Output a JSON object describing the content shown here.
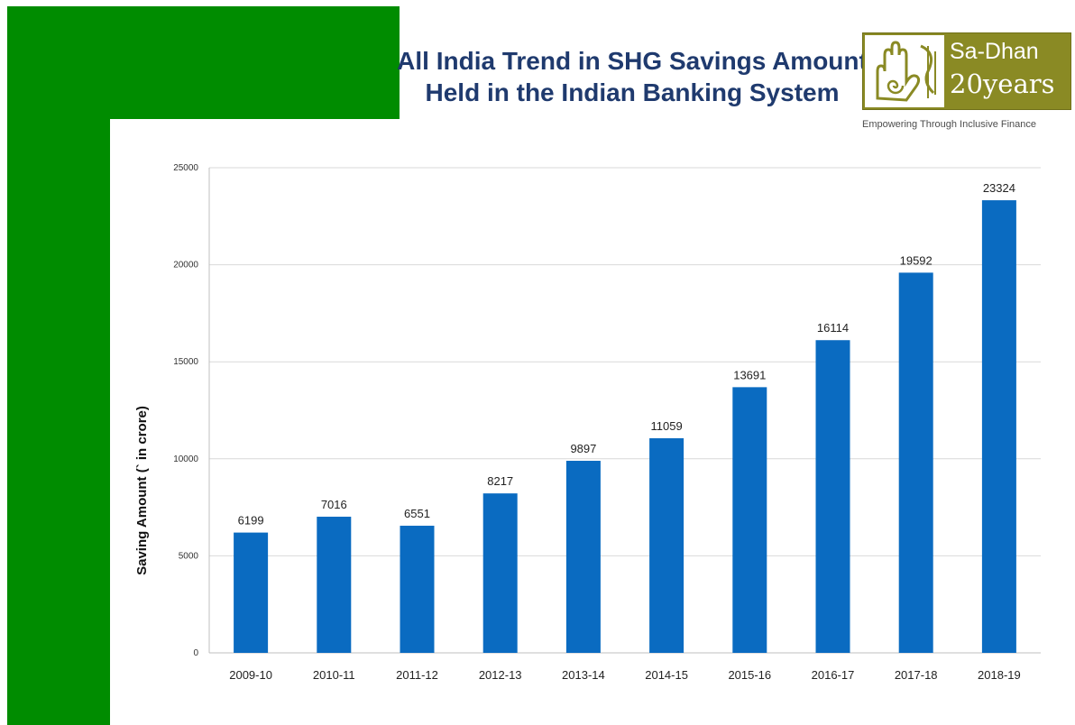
{
  "slide": {
    "title": "All India Trend in SHG Savings Amount Held in the Indian Banking System"
  },
  "logo": {
    "name": "Sa-Dhan",
    "years": "20years",
    "tagline": "Empowering Through Inclusive Finance",
    "color": "#8a8a24",
    "emblem": "hand-spiral-icon"
  },
  "colors": {
    "accent_green": "#008c00",
    "bar": "#0a6bc1",
    "title": "#1f3a6e"
  },
  "chart_data": {
    "type": "bar",
    "title": "",
    "xlabel": "",
    "ylabel": "Saving Amount (` in crore)",
    "categories": [
      "2009-10",
      "2010-11",
      "2011-12",
      "2012-13",
      "2013-14",
      "2014-15",
      "2015-16",
      "2016-17",
      "2017-18",
      "2018-19"
    ],
    "values": [
      6199,
      7016,
      6551,
      8217,
      9897,
      11059,
      13691,
      16114,
      19592,
      23324
    ],
    "data_labels": [
      "6199",
      "7016",
      "6551",
      "8217",
      "9897",
      "11059",
      "13691",
      "16114",
      "19592",
      "23324"
    ],
    "yticks": [
      0,
      5000,
      10000,
      15000,
      20000,
      25000
    ],
    "ytick_labels": [
      "0",
      "5000",
      "10000",
      "15000",
      "20000",
      "25000"
    ],
    "ylim": [
      0,
      25000
    ],
    "grid": true,
    "legend": "none"
  }
}
